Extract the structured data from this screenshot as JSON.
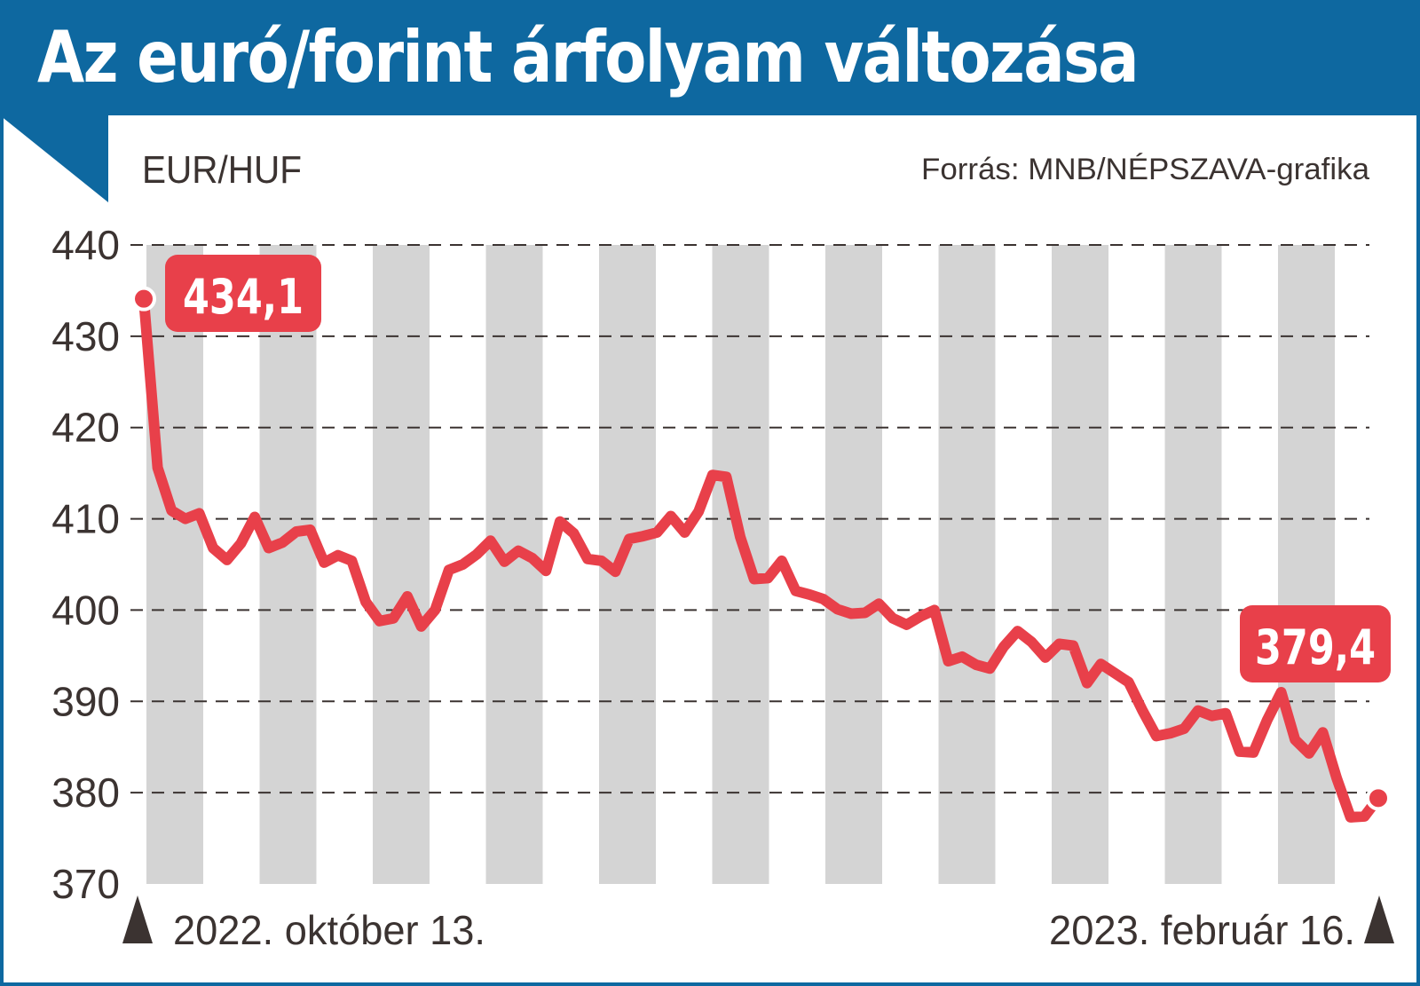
{
  "header": {
    "title": "Az euró/forint árfolyam változása"
  },
  "colors": {
    "brand": "#0e68a0",
    "line": "#e8404a",
    "band": "#d4d4d4",
    "text": "#3b3331"
  },
  "chart_data": {
    "type": "line",
    "unit_label": "EUR/HUF",
    "source": "Forrás: MNB/NÉPSZAVA-grafika",
    "ylim": [
      370,
      440
    ],
    "yticks": [
      "440",
      "430",
      "420",
      "410",
      "400",
      "390",
      "380",
      "370"
    ],
    "grid": "horizontal dashed",
    "alternating_bands": true,
    "start_label": "2022. október 13.",
    "end_label": "2023. február 16.",
    "start_value_label": "434,1",
    "end_value_label": "379,4",
    "series": [
      {
        "values": [
          434.1,
          415.6,
          410.9,
          410.0,
          410.6,
          406.8,
          405.5,
          407.3,
          410.2,
          406.8,
          407.4,
          408.6,
          408.8,
          405.2,
          406.0,
          405.4,
          400.9,
          398.8,
          399.1,
          401.5,
          398.2,
          400.0,
          404.4,
          405.0,
          406.1,
          407.6,
          405.3,
          406.5,
          405.7,
          404.3,
          409.7,
          408.4,
          405.6,
          405.4,
          404.2,
          407.8,
          408.1,
          408.5,
          410.3,
          408.5,
          410.8,
          414.8,
          414.6,
          408.0,
          403.4,
          403.5,
          405.4,
          402.1,
          401.7,
          401.2,
          400.1,
          399.6,
          399.7,
          400.7,
          399.1,
          398.4,
          399.3,
          400.0,
          394.4,
          394.9,
          394.0,
          393.6,
          396.0,
          397.7,
          396.5,
          394.8,
          396.3,
          396.1,
          392.0,
          394.1,
          393.1,
          392.1,
          389.0,
          386.2,
          386.5,
          387.0,
          389.0,
          388.4,
          388.7,
          384.5,
          384.4,
          388.0,
          391.0,
          385.8,
          384.3,
          386.6,
          381.6,
          377.3,
          377.4,
          379.4
        ]
      }
    ]
  }
}
